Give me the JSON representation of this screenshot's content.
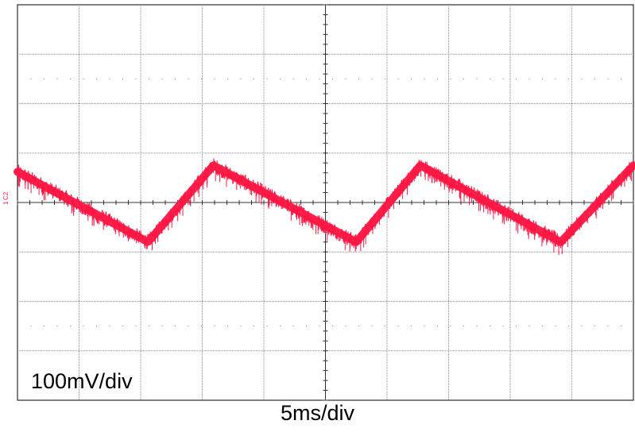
{
  "chart_data": {
    "type": "line",
    "x_scale_label": "5ms/div",
    "y_scale_label": "100mV/div",
    "channel_marker": "C2",
    "channel_marker_sub": "1",
    "trace_color": "#ff1744",
    "x_divisions": 10,
    "y_divisions": 8,
    "x_ms_per_div": 5,
    "y_mV_per_div": 100,
    "xlim_ms": [
      0,
      50
    ],
    "ylim_mV": [
      -400,
      400
    ],
    "series": [
      {
        "x_ms": [
          0,
          10.6,
          15.9,
          27.5,
          32.7,
          44.1,
          50
        ],
        "y_mV": [
          62,
          -80,
          75,
          -80,
          75,
          -80,
          75
        ]
      }
    ],
    "noise_band_mV": 16
  }
}
